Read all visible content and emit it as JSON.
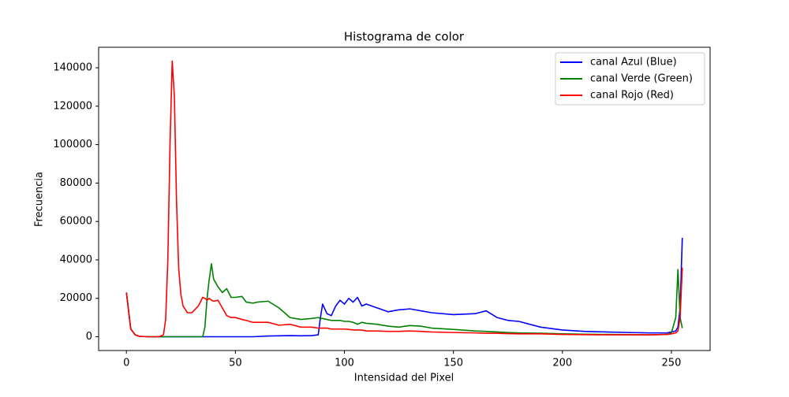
{
  "chart_data": {
    "type": "line",
    "title": "Histograma de color",
    "x_label": "Intensidad del Pixel",
    "y_label": "Frecuencia",
    "x": [
      0,
      2,
      4,
      6,
      10,
      15,
      17,
      18,
      19,
      20,
      21,
      22,
      23,
      24,
      25,
      26,
      28,
      30,
      33,
      35,
      36,
      37,
      38,
      39,
      40,
      42,
      44,
      46,
      48,
      50,
      53,
      55,
      58,
      60,
      65,
      70,
      75,
      80,
      85,
      88,
      89,
      90,
      92,
      94,
      96,
      98,
      100,
      102,
      104,
      106,
      108,
      110,
      115,
      120,
      125,
      130,
      135,
      140,
      150,
      160,
      165,
      170,
      175,
      180,
      190,
      200,
      210,
      220,
      230,
      240,
      248,
      250,
      252,
      253,
      254,
      255
    ],
    "series": [
      {
        "name": "canal Azul (Blue)",
        "color": "#0000ff",
        "values": [
          23000,
          4000,
          1000,
          200,
          0,
          0,
          0,
          0,
          0,
          0,
          0,
          0,
          0,
          0,
          0,
          0,
          0,
          0,
          0,
          0,
          0,
          0,
          0,
          0,
          0,
          0,
          0,
          0,
          0,
          0,
          0,
          0,
          0,
          100,
          400,
          500,
          600,
          500,
          600,
          1000,
          10000,
          17000,
          12000,
          11000,
          16000,
          19000,
          17000,
          20000,
          18000,
          20500,
          16000,
          17000,
          15000,
          13000,
          14000,
          14500,
          13500,
          12500,
          11500,
          12000,
          13500,
          10000,
          8500,
          8000,
          5000,
          3500,
          2800,
          2500,
          2200,
          2000,
          2000,
          2500,
          3000,
          5000,
          15000,
          51500
        ]
      },
      {
        "name": "canal Verde (Green)",
        "color": "#008000",
        "values": [
          23000,
          4000,
          1000,
          200,
          0,
          0,
          0,
          0,
          0,
          0,
          0,
          0,
          0,
          0,
          0,
          0,
          0,
          0,
          0,
          0,
          5000,
          20000,
          30000,
          38000,
          30000,
          26000,
          23000,
          25000,
          20500,
          20500,
          21000,
          18000,
          17500,
          18000,
          18500,
          15000,
          10000,
          9000,
          9500,
          10000,
          9500,
          9500,
          9000,
          8500,
          8500,
          8500,
          8000,
          8000,
          7500,
          6500,
          7500,
          7000,
          6500,
          5500,
          5000,
          5800,
          5500,
          4500,
          3800,
          3000,
          2800,
          2500,
          2200,
          2000,
          1800,
          1500,
          1300,
          1200,
          1100,
          1000,
          1200,
          2000,
          10000,
          35000,
          10000,
          4500
        ]
      },
      {
        "name": "canal Rojo (Red)",
        "color": "#ff0000",
        "values": [
          23000,
          4000,
          1000,
          200,
          0,
          0,
          1000,
          9000,
          40000,
          100000,
          143500,
          125000,
          70000,
          35000,
          22000,
          16000,
          12500,
          12500,
          16000,
          20500,
          20000,
          19000,
          20000,
          19000,
          18500,
          19000,
          15000,
          11000,
          10000,
          10000,
          9000,
          8500,
          7500,
          7500,
          7500,
          6000,
          6500,
          5000,
          5000,
          4500,
          4500,
          4500,
          4500,
          4000,
          4000,
          4000,
          4000,
          3800,
          3500,
          3500,
          3500,
          3000,
          3000,
          2800,
          2800,
          3000,
          2800,
          2500,
          2200,
          2000,
          1800,
          1800,
          1600,
          1500,
          1500,
          1200,
          1100,
          1000,
          1000,
          1000,
          1200,
          1500,
          2000,
          3000,
          10000,
          36000
        ]
      }
    ],
    "xlim": [
      -12.75,
      267.75
    ],
    "xticks": [
      0,
      50,
      100,
      150,
      200,
      250
    ],
    "ylim": [
      -7175,
      150675
    ],
    "yticks": [
      0,
      20000,
      40000,
      60000,
      80000,
      100000,
      120000,
      140000
    ],
    "legend": "upper right",
    "grid": false
  }
}
